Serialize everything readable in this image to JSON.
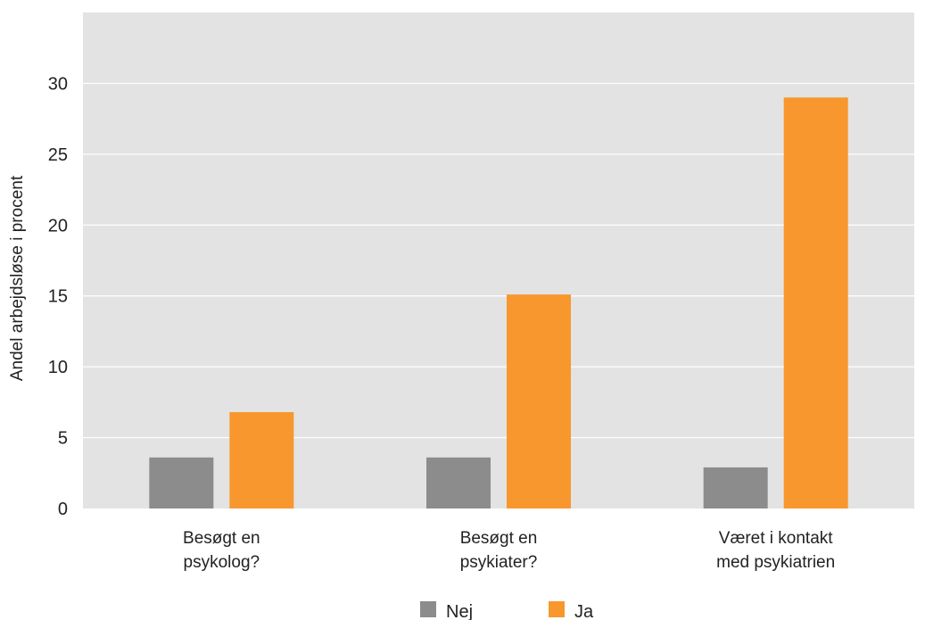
{
  "chart_data": {
    "type": "bar",
    "title": "",
    "xlabel": "",
    "ylabel": "Andel arbejdsløse i procent",
    "ylim": [
      0,
      35
    ],
    "yticks": [
      0,
      5,
      10,
      15,
      20,
      25,
      30
    ],
    "grid": true,
    "legend_position": "bottom",
    "categories": [
      [
        "Besøgt en",
        "psykolog?"
      ],
      [
        "Besøgt en",
        "psykiater?"
      ],
      [
        "Været i kontakt",
        "med psykiatrien"
      ]
    ],
    "series": [
      {
        "name": "Nej",
        "color": "#8c8c8c",
        "values": [
          3.6,
          3.6,
          2.9
        ]
      },
      {
        "name": "Ja",
        "color": "#f7972e",
        "values": [
          6.8,
          15.1,
          29.0
        ]
      }
    ],
    "plot_background": "#e3e3e3",
    "gridline_color": "#ffffff"
  }
}
